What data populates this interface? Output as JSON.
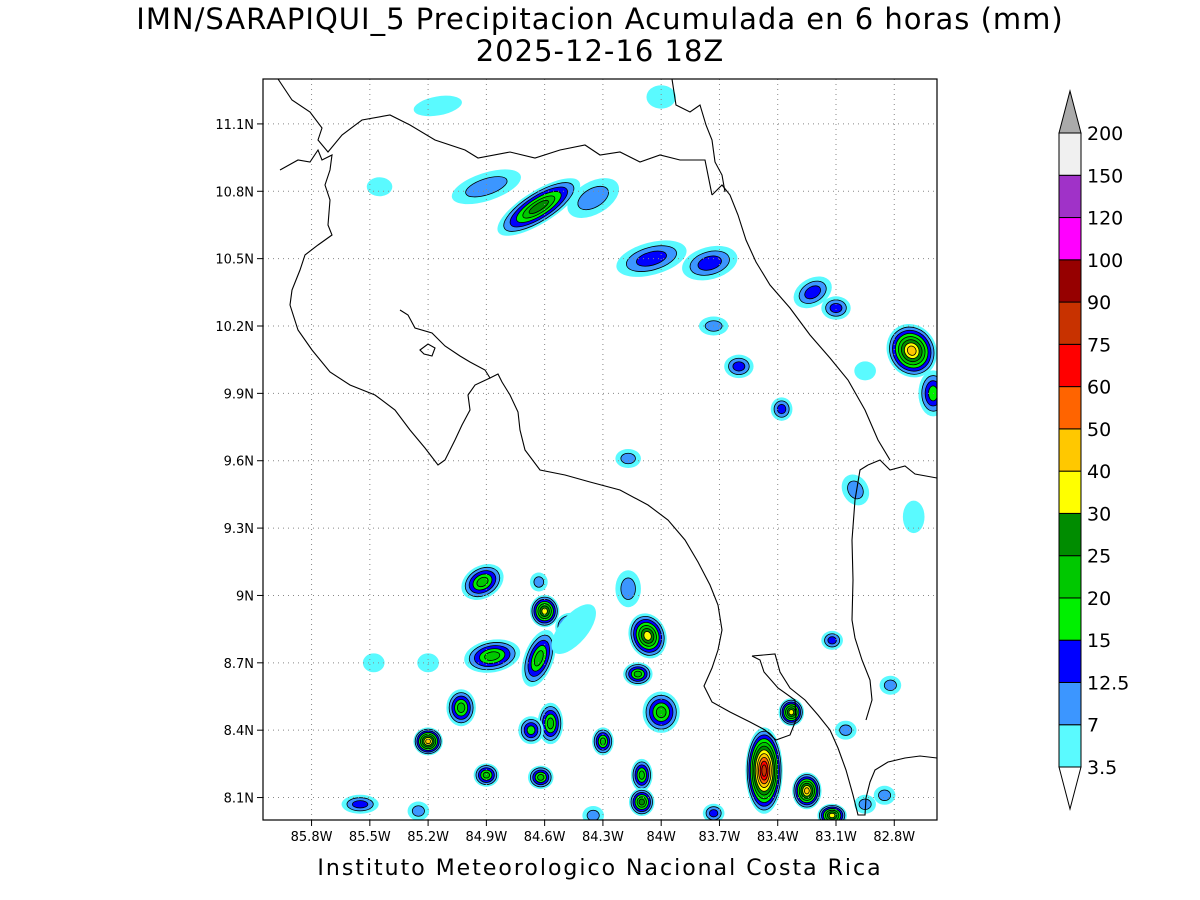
{
  "title": "IMN/SARAPIQUI_5 Precipitacion Acumulada en 6 horas (mm)",
  "subtitle": "2025-12-16 18Z",
  "footer": "Instituto Meteorologico Nacional Costa Rica",
  "map": {
    "lon_range": [
      -86.05,
      -82.58
    ],
    "lat_range": [
      8.0,
      11.3
    ],
    "lon_ticks": [
      {
        "value": -85.8,
        "label": "85.8W"
      },
      {
        "value": -85.5,
        "label": "85.5W"
      },
      {
        "value": -85.2,
        "label": "85.2W"
      },
      {
        "value": -84.9,
        "label": "84.9W"
      },
      {
        "value": -84.6,
        "label": "84.6W"
      },
      {
        "value": -84.3,
        "label": "84.3W"
      },
      {
        "value": -84.0,
        "label": "84W"
      },
      {
        "value": -83.7,
        "label": "83.7W"
      },
      {
        "value": -83.4,
        "label": "83.4W"
      },
      {
        "value": -83.1,
        "label": "83.1W"
      },
      {
        "value": -82.8,
        "label": "82.8W"
      }
    ],
    "lat_ticks": [
      {
        "value": 8.1,
        "label": "8.1N"
      },
      {
        "value": 8.4,
        "label": "8.4N"
      },
      {
        "value": 8.7,
        "label": "8.7N"
      },
      {
        "value": 9.0,
        "label": "9N"
      },
      {
        "value": 9.3,
        "label": "9.3N"
      },
      {
        "value": 9.6,
        "label": "9.6N"
      },
      {
        "value": 9.9,
        "label": "9.9N"
      },
      {
        "value": 10.2,
        "label": "10.2N"
      },
      {
        "value": 10.5,
        "label": "10.5N"
      },
      {
        "value": 10.8,
        "label": "10.8N"
      },
      {
        "value": 11.1,
        "label": "11.1N"
      }
    ],
    "grid": true,
    "precip_cells": [
      {
        "lon": -84.63,
        "lat": 10.73,
        "rx": 0.22,
        "ry": 0.05,
        "rot": -32,
        "max_mm": 25
      },
      {
        "lon": -84.9,
        "lat": 10.82,
        "rx": 0.16,
        "ry": 0.04,
        "rot": -18,
        "max_mm": 7
      },
      {
        "lon": -84.35,
        "lat": 10.77,
        "rx": 0.12,
        "ry": 0.05,
        "rot": -30,
        "max_mm": 7
      },
      {
        "lon": -85.15,
        "lat": 11.18,
        "rx": 0.1,
        "ry": 0.02,
        "rot": -10,
        "max_mm": 3.5
      },
      {
        "lon": -84.05,
        "lat": 10.5,
        "rx": 0.16,
        "ry": 0.05,
        "rot": -15,
        "max_mm": 12.5
      },
      {
        "lon": -83.75,
        "lat": 10.48,
        "rx": 0.12,
        "ry": 0.05,
        "rot": -15,
        "max_mm": 12.5
      },
      {
        "lon": -83.22,
        "lat": 10.35,
        "rx": 0.08,
        "ry": 0.04,
        "rot": -30,
        "max_mm": 12.5
      },
      {
        "lon": -83.1,
        "lat": 10.28,
        "rx": 0.05,
        "ry": 0.03,
        "rot": 0,
        "max_mm": 12.5
      },
      {
        "lon": -82.71,
        "lat": 10.09,
        "rx": 0.1,
        "ry": 0.1,
        "rot": -30,
        "max_mm": 40
      },
      {
        "lon": -82.6,
        "lat": 9.9,
        "rx": 0.05,
        "ry": 0.08,
        "rot": 0,
        "max_mm": 15
      },
      {
        "lon": -83.6,
        "lat": 10.02,
        "rx": 0.05,
        "ry": 0.03,
        "rot": 0,
        "max_mm": 12.5
      },
      {
        "lon": -83.73,
        "lat": 10.2,
        "rx": 0.05,
        "ry": 0.02,
        "rot": 0,
        "max_mm": 7
      },
      {
        "lon": -83.38,
        "lat": 9.83,
        "rx": 0.03,
        "ry": 0.03,
        "rot": 0,
        "max_mm": 12.5
      },
      {
        "lon": -84.17,
        "lat": 9.61,
        "rx": 0.04,
        "ry": 0.02,
        "rot": 0,
        "max_mm": 7
      },
      {
        "lon": -84.92,
        "lat": 9.06,
        "rx": 0.09,
        "ry": 0.05,
        "rot": -30,
        "max_mm": 20
      },
      {
        "lon": -84.6,
        "lat": 8.93,
        "rx": 0.05,
        "ry": 0.05,
        "rot": 0,
        "max_mm": 30
      },
      {
        "lon": -84.47,
        "lat": 8.86,
        "rx": 0.05,
        "ry": 0.04,
        "rot": 0,
        "max_mm": 20
      },
      {
        "lon": -84.87,
        "lat": 8.73,
        "rx": 0.12,
        "ry": 0.05,
        "rot": -10,
        "max_mm": 20
      },
      {
        "lon": -84.63,
        "lat": 8.72,
        "rx": 0.05,
        "ry": 0.11,
        "rot": 20,
        "max_mm": 20
      },
      {
        "lon": -84.07,
        "lat": 8.82,
        "rx": 0.07,
        "ry": 0.08,
        "rot": -20,
        "max_mm": 30
      },
      {
        "lon": -84.17,
        "lat": 9.03,
        "rx": 0.04,
        "ry": 0.06,
        "rot": 0,
        "max_mm": 7
      },
      {
        "lon": -84.12,
        "lat": 8.65,
        "rx": 0.05,
        "ry": 0.03,
        "rot": 0,
        "max_mm": 20
      },
      {
        "lon": -84.0,
        "lat": 8.48,
        "rx": 0.07,
        "ry": 0.07,
        "rot": 0,
        "max_mm": 20
      },
      {
        "lon": -85.03,
        "lat": 8.5,
        "rx": 0.05,
        "ry": 0.06,
        "rot": 0,
        "max_mm": 20
      },
      {
        "lon": -85.2,
        "lat": 8.35,
        "rx": 0.05,
        "ry": 0.04,
        "rot": 0,
        "max_mm": 40
      },
      {
        "lon": -84.57,
        "lat": 8.43,
        "rx": 0.04,
        "ry": 0.07,
        "rot": 0,
        "max_mm": 20
      },
      {
        "lon": -84.67,
        "lat": 8.4,
        "rx": 0.04,
        "ry": 0.04,
        "rot": 0,
        "max_mm": 15
      },
      {
        "lon": -84.3,
        "lat": 8.35,
        "rx": 0.03,
        "ry": 0.04,
        "rot": 0,
        "max_mm": 20
      },
      {
        "lon": -84.62,
        "lat": 8.19,
        "rx": 0.04,
        "ry": 0.03,
        "rot": 0,
        "max_mm": 20
      },
      {
        "lon": -84.9,
        "lat": 8.2,
        "rx": 0.04,
        "ry": 0.03,
        "rot": 0,
        "max_mm": 20
      },
      {
        "lon": -84.1,
        "lat": 8.2,
        "rx": 0.03,
        "ry": 0.05,
        "rot": 0,
        "max_mm": 20
      },
      {
        "lon": -84.1,
        "lat": 8.08,
        "rx": 0.04,
        "ry": 0.04,
        "rot": 0,
        "max_mm": 25
      },
      {
        "lon": -83.47,
        "lat": 8.22,
        "rx": 0.07,
        "ry": 0.17,
        "rot": 0,
        "max_mm": 75
      },
      {
        "lon": -83.25,
        "lat": 8.13,
        "rx": 0.05,
        "ry": 0.06,
        "rot": 0,
        "max_mm": 40
      },
      {
        "lon": -83.12,
        "lat": 8.02,
        "rx": 0.05,
        "ry": 0.03,
        "rot": 0,
        "max_mm": 30
      },
      {
        "lon": -83.33,
        "lat": 8.48,
        "rx": 0.04,
        "ry": 0.04,
        "rot": 0,
        "max_mm": 30
      },
      {
        "lon": -83.12,
        "lat": 8.8,
        "rx": 0.03,
        "ry": 0.02,
        "rot": 0,
        "max_mm": 12.5
      },
      {
        "lon": -85.55,
        "lat": 8.07,
        "rx": 0.07,
        "ry": 0.02,
        "rot": 0,
        "max_mm": 12.5
      },
      {
        "lon": -85.25,
        "lat": 8.04,
        "rx": 0.03,
        "ry": 0.02,
        "rot": 0,
        "max_mm": 7
      },
      {
        "lon": -83.73,
        "lat": 8.03,
        "rx": 0.03,
        "ry": 0.02,
        "rot": 0,
        "max_mm": 12.5
      },
      {
        "lon": -84.35,
        "lat": 8.02,
        "rx": 0.03,
        "ry": 0.02,
        "rot": 0,
        "max_mm": 7
      },
      {
        "lon": -82.95,
        "lat": 8.07,
        "rx": 0.03,
        "ry": 0.02,
        "rot": 0,
        "max_mm": 7
      },
      {
        "lon": -82.85,
        "lat": 8.11,
        "rx": 0.03,
        "ry": 0.02,
        "rot": 0,
        "max_mm": 7
      },
      {
        "lon": -85.45,
        "lat": 10.82,
        "rx": 0.04,
        "ry": 0.02,
        "rot": 0,
        "max_mm": 3.5
      },
      {
        "lon": -84.0,
        "lat": 11.22,
        "rx": 0.05,
        "ry": 0.03,
        "rot": 0,
        "max_mm": 3.5
      },
      {
        "lon": -82.95,
        "lat": 10.0,
        "rx": 0.03,
        "ry": 0.02,
        "rot": 0,
        "max_mm": 3.5
      },
      {
        "lon": -82.7,
        "lat": 9.35,
        "rx": 0.03,
        "ry": 0.05,
        "rot": 0,
        "max_mm": 3.5
      },
      {
        "lon": -83.0,
        "lat": 9.47,
        "rx": 0.04,
        "ry": 0.05,
        "rot": -30,
        "max_mm": 7
      },
      {
        "lon": -84.63,
        "lat": 9.06,
        "rx": 0.02,
        "ry": 0.02,
        "rot": 0,
        "max_mm": 7
      },
      {
        "lon": -85.2,
        "lat": 8.7,
        "rx": 0.03,
        "ry": 0.02,
        "rot": 0,
        "max_mm": 3.5
      },
      {
        "lon": -85.48,
        "lat": 8.7,
        "rx": 0.03,
        "ry": 0.02,
        "rot": 0,
        "max_mm": 3.5
      },
      {
        "lon": -82.82,
        "lat": 8.6,
        "rx": 0.03,
        "ry": 0.02,
        "rot": 0,
        "max_mm": 7
      },
      {
        "lon": -83.05,
        "lat": 8.4,
        "rx": 0.03,
        "ry": 0.02,
        "rot": 0,
        "max_mm": 7
      },
      {
        "lon": -84.45,
        "lat": 8.85,
        "rx": 0.13,
        "ry": 0.04,
        "rot": -50,
        "max_mm": 3.5
      }
    ]
  },
  "colorbar": {
    "levels": [
      {
        "label": "3.5",
        "color": "#5afaff"
      },
      {
        "label": "7",
        "color": "#3c96ff"
      },
      {
        "label": "12.5",
        "color": "#0000ff"
      },
      {
        "label": "15",
        "color": "#00f000"
      },
      {
        "label": "20",
        "color": "#00c800"
      },
      {
        "label": "25",
        "color": "#008c00"
      },
      {
        "label": "30",
        "color": "#ffff00"
      },
      {
        "label": "40",
        "color": "#ffc800"
      },
      {
        "label": "50",
        "color": "#ff6400"
      },
      {
        "label": "60",
        "color": "#ff0000"
      },
      {
        "label": "75",
        "color": "#c83200"
      },
      {
        "label": "90",
        "color": "#960000"
      },
      {
        "label": "100",
        "color": "#ff00ff"
      },
      {
        "label": "120",
        "color": "#a032c8"
      },
      {
        "label": "150",
        "color": "#f0f0f0"
      },
      {
        "label": "200",
        "color": "#aaaaaa"
      }
    ],
    "under_color": "#ffffff",
    "over_color": "#aaaaaa"
  }
}
